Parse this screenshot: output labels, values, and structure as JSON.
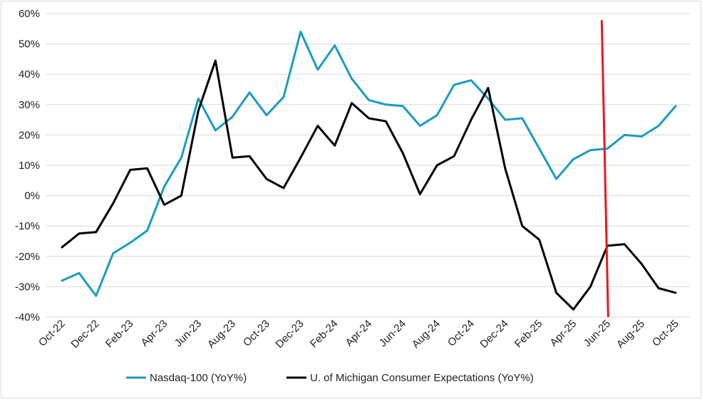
{
  "chart_data": {
    "type": "line",
    "title": "",
    "xlabel": "",
    "ylabel": "",
    "ylim": [
      -40,
      60
    ],
    "y_ticks": [
      "60%",
      "50%",
      "40%",
      "30%",
      "20%",
      "10%",
      "0%",
      "-10%",
      "-20%",
      "-30%",
      "-40%"
    ],
    "x": [
      "Oct-22",
      "Nov-22",
      "Dec-22",
      "Jan-23",
      "Feb-23",
      "Mar-23",
      "Apr-23",
      "May-23",
      "Jun-23",
      "Jul-23",
      "Aug-23",
      "Sep-23",
      "Oct-23",
      "Nov-23",
      "Dec-23",
      "Jan-24",
      "Feb-24",
      "Mar-24",
      "Apr-24",
      "May-24",
      "Jun-24",
      "Jul-24",
      "Aug-24",
      "Sep-24",
      "Oct-24",
      "Nov-24",
      "Dec-24",
      "Jan-25",
      "Feb-25",
      "Mar-25",
      "Apr-25",
      "May-25",
      "Jun-25",
      "Jul-25",
      "Aug-25",
      "Sep-25",
      "Oct-25"
    ],
    "x_tick_labels": [
      "Oct-22",
      "Dec-22",
      "Feb-23",
      "Apr-23",
      "Jun-23",
      "Aug-23",
      "Oct-23",
      "Dec-23",
      "Feb-24",
      "Apr-24",
      "Jun-24",
      "Aug-24",
      "Oct-24",
      "Dec-24",
      "Feb-25",
      "Apr-25",
      "Jun-25",
      "Aug-25",
      "Oct-25"
    ],
    "grid": true,
    "legend_position": "bottom",
    "series": [
      {
        "name": "Nasdaq-100 (YoY%)",
        "color": "#1a9bc7",
        "values": [
          -28,
          -25.5,
          -33,
          -19,
          -15.5,
          -11.5,
          3,
          12.5,
          32,
          21.5,
          26,
          34,
          26.5,
          32.5,
          54,
          41.5,
          49.5,
          38.5,
          31.5,
          30,
          29.5,
          23,
          26.5,
          36.5,
          38,
          32,
          25,
          25.5,
          15.5,
          5.5,
          12,
          15,
          15.5,
          20,
          19.5,
          23,
          29.5
        ]
      },
      {
        "name": "U. of Michigan Consumer Expectations (YoY%)",
        "color": "#000000",
        "values": [
          -17,
          -12.5,
          -12,
          -2.5,
          8.5,
          9,
          -3,
          0,
          28,
          44.5,
          12.5,
          13,
          5.5,
          2.5,
          12.5,
          23,
          16.5,
          30.5,
          25.5,
          24.5,
          14,
          0.5,
          10,
          13,
          25,
          35.5,
          9,
          -10,
          -14.5,
          -32,
          -37.5,
          -30,
          -16.5,
          -16,
          -22.5,
          -30.5,
          -32
        ]
      }
    ],
    "annotation": {
      "type": "vertical-line",
      "color": "#e8191d",
      "x_start": "Jun-25",
      "y_start": 59,
      "y_end": -40
    }
  }
}
